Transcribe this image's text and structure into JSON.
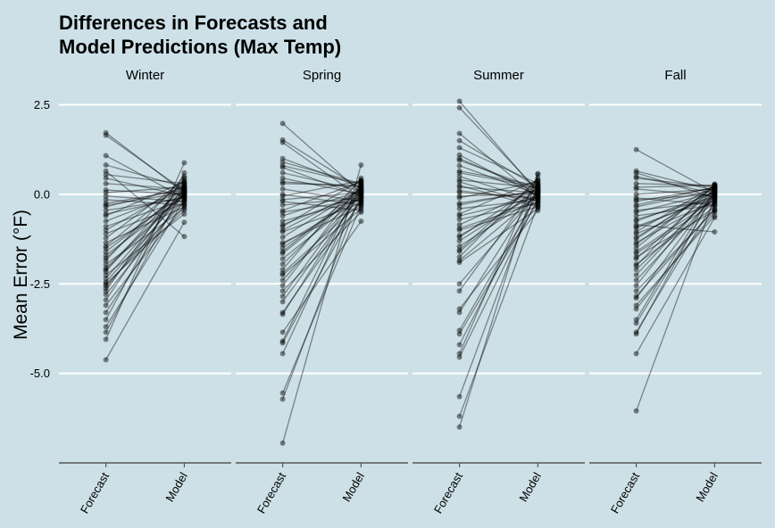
{
  "chart_data": {
    "type": "line",
    "title_line1": "Differences in Forecasts and",
    "title_line2": "Model Predictions (Max Temp)",
    "ylabel": "Mean Error (°F)",
    "ylim": [
      -7.5,
      2.5
    ],
    "yticks": [
      2.5,
      0.0,
      -2.5,
      -5.0
    ],
    "ytick_labels": [
      "2.5",
      "0.0",
      "-2.5",
      "-5.0"
    ],
    "categories": [
      "Forecast",
      "Model"
    ],
    "grid": "horizontal",
    "colors": {
      "background": "#cde0e7",
      "grid": "#ffffff",
      "mark": "#000000"
    },
    "facets": [
      {
        "name": "Winter",
        "forecast": [
          1.72,
          1.65,
          1.08,
          0.82,
          0.55,
          0.45,
          0.3,
          0.12,
          0.05,
          -0.05,
          -0.15,
          -0.3,
          -0.45,
          -0.6,
          -0.75,
          -0.9,
          -1.0,
          -1.1,
          -1.22,
          -1.35,
          -1.5,
          -1.6,
          -1.7,
          -1.78,
          -1.85,
          -1.95,
          -2.05,
          -2.15,
          -2.25,
          -2.35,
          -2.45,
          -2.55,
          -2.62,
          -2.7,
          -2.8,
          -2.95,
          -3.1,
          -3.3,
          -3.5,
          -3.7,
          -3.85,
          -4.05,
          -4.62,
          0.65,
          -0.25,
          -0.55,
          -1.45,
          -2.5,
          -2.1,
          -0.35
        ],
        "model": [
          0.05,
          0.1,
          -0.1,
          0.2,
          0.3,
          -0.05,
          0.15,
          0.0,
          0.2,
          -0.2,
          -0.3,
          0.05,
          -0.1,
          0.35,
          0.1,
          -0.15,
          0.25,
          -0.25,
          0.4,
          -0.35,
          0.0,
          0.1,
          -0.05,
          0.2,
          0.5,
          -0.4,
          0.05,
          0.3,
          -0.55,
          0.15,
          0.0,
          -0.2,
          0.1,
          0.45,
          -0.1,
          0.25,
          -0.3,
          0.05,
          0.6,
          -0.15,
          0.2,
          0.88,
          -0.78,
          -1.18,
          0.12,
          -0.08,
          0.35,
          -0.45,
          0.02,
          0.18
        ]
      },
      {
        "name": "Spring",
        "forecast": [
          1.98,
          1.52,
          1.45,
          1.0,
          0.9,
          0.75,
          0.6,
          0.45,
          0.3,
          0.15,
          0.0,
          -0.15,
          -0.3,
          -0.45,
          -0.6,
          -0.75,
          -0.9,
          -1.05,
          -1.2,
          -1.35,
          -1.5,
          -1.65,
          -1.8,
          -1.95,
          -2.1,
          -2.25,
          -2.4,
          -2.55,
          -2.7,
          -2.85,
          -3.0,
          -3.3,
          -3.35,
          -3.85,
          -4.1,
          -4.15,
          -4.45,
          -5.55,
          -5.72,
          -6.95,
          0.35,
          -0.5,
          -1.0,
          -1.4,
          0.8,
          -0.2,
          -0.85,
          -1.6,
          -2.2,
          -0.05
        ],
        "model": [
          0.05,
          0.15,
          -0.1,
          0.2,
          0.3,
          -0.05,
          0.1,
          0.0,
          0.25,
          -0.2,
          -0.3,
          0.05,
          -0.1,
          0.35,
          0.1,
          -0.15,
          0.4,
          -0.25,
          0.15,
          -0.35,
          0.0,
          0.1,
          -0.05,
          0.2,
          0.45,
          -0.4,
          0.05,
          0.3,
          -0.5,
          0.15,
          0.0,
          -0.2,
          0.1,
          -0.75,
          0.35,
          -0.1,
          0.25,
          -0.3,
          0.05,
          0.82,
          0.2,
          -0.15,
          0.12,
          -0.08,
          0.28,
          -0.45,
          0.02,
          0.18,
          -0.22,
          0.38
        ]
      },
      {
        "name": "Summer",
        "forecast": [
          2.6,
          2.42,
          1.7,
          1.5,
          1.3,
          1.1,
          0.95,
          0.8,
          0.65,
          0.5,
          0.35,
          0.2,
          0.05,
          -0.1,
          -0.25,
          -0.4,
          -0.55,
          -0.7,
          -0.85,
          -1.0,
          -1.15,
          -1.3,
          -1.45,
          -1.6,
          -1.75,
          -1.9,
          -2.5,
          -2.7,
          -3.2,
          -3.3,
          -3.8,
          -3.9,
          -4.2,
          -4.45,
          -4.55,
          -5.65,
          -6.2,
          -6.5,
          1.0,
          0.6,
          0.1,
          -0.3,
          -0.6,
          -1.2,
          0.25,
          -0.05,
          0.4,
          -0.95,
          -1.55,
          -1.85
        ],
        "model": [
          0.05,
          0.1,
          -0.1,
          0.2,
          0.3,
          -0.05,
          0.15,
          0.0,
          0.25,
          -0.2,
          -0.3,
          0.05,
          -0.1,
          0.35,
          0.1,
          -0.15,
          0.4,
          -0.25,
          0.15,
          -0.35,
          0.0,
          0.1,
          -0.05,
          0.2,
          0.45,
          -0.4,
          0.05,
          0.3,
          -0.45,
          0.15,
          0.0,
          -0.2,
          0.1,
          0.55,
          -0.1,
          0.25,
          -0.3,
          0.58,
          0.05,
          0.2,
          -0.15,
          0.12,
          -0.08,
          0.28,
          -0.35,
          0.02,
          0.18,
          -0.22,
          0.38,
          -0.02
        ]
      },
      {
        "name": "Fall",
        "forecast": [
          1.25,
          0.65,
          0.6,
          0.45,
          0.3,
          0.15,
          0.0,
          -0.15,
          -0.3,
          -0.45,
          -0.6,
          -0.75,
          -0.9,
          -1.05,
          -1.2,
          -1.35,
          -1.5,
          -1.65,
          -1.8,
          -1.95,
          -2.1,
          -2.25,
          -2.4,
          -2.55,
          -2.7,
          -2.85,
          -2.9,
          -3.1,
          -3.2,
          -3.5,
          -3.6,
          -3.85,
          -3.9,
          -4.45,
          -6.05,
          0.2,
          -0.1,
          -0.5,
          -0.85,
          -1.25,
          -1.6,
          -0.35,
          -0.7,
          -1.4,
          -1.75,
          0.5,
          -0.2,
          -1.1,
          -2.0,
          -0.95
        ],
        "model": [
          0.05,
          0.1,
          -0.1,
          0.2,
          0.25,
          -0.05,
          0.15,
          0.0,
          0.2,
          -0.2,
          -0.3,
          0.05,
          -0.1,
          0.25,
          0.1,
          -0.15,
          0.28,
          -0.25,
          0.15,
          -0.35,
          0.0,
          0.1,
          -0.05,
          0.2,
          -0.45,
          -0.4,
          0.05,
          -0.6,
          -0.5,
          0.15,
          0.0,
          -0.2,
          0.1,
          -0.65,
          -0.1,
          0.25,
          -0.3,
          0.05,
          -1.05,
          0.2,
          -0.15,
          0.12,
          -0.08,
          0.22,
          -0.45,
          0.02,
          0.18,
          -0.22,
          0.28,
          -0.02
        ]
      }
    ]
  }
}
